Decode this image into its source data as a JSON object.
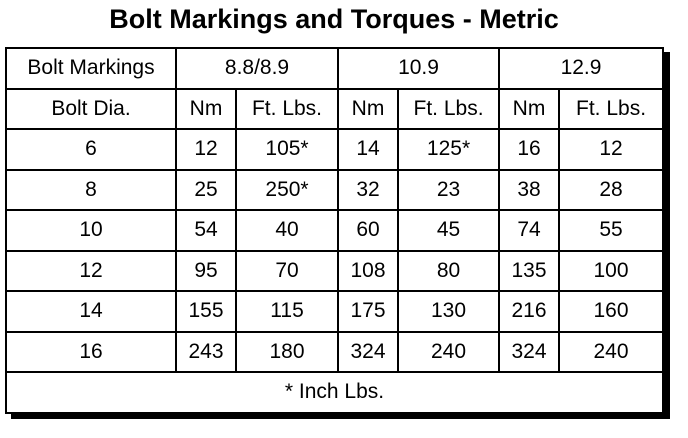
{
  "title": "Bolt Markings and Torques - Metric",
  "table": {
    "header": [
      "Bolt Markings",
      "8.8/8.9",
      "10.9",
      "12.9"
    ],
    "subheader": [
      "Bolt Dia.",
      "Nm",
      "Ft. Lbs.",
      "Nm",
      "Ft. Lbs.",
      "Nm",
      "Ft. Lbs."
    ],
    "rows": [
      [
        "6",
        "12",
        "105*",
        "14",
        "125*",
        "16",
        "12"
      ],
      [
        "8",
        "25",
        "250*",
        "32",
        "23",
        "38",
        "28"
      ],
      [
        "10",
        "54",
        "40",
        "60",
        "45",
        "74",
        "55"
      ],
      [
        "12",
        "95",
        "70",
        "108",
        "80",
        "135",
        "100"
      ],
      [
        "14",
        "155",
        "115",
        "175",
        "130",
        "216",
        "160"
      ],
      [
        "16",
        "243",
        "180",
        "324",
        "240",
        "324",
        "240"
      ]
    ],
    "footnote": "* Inch Lbs."
  }
}
